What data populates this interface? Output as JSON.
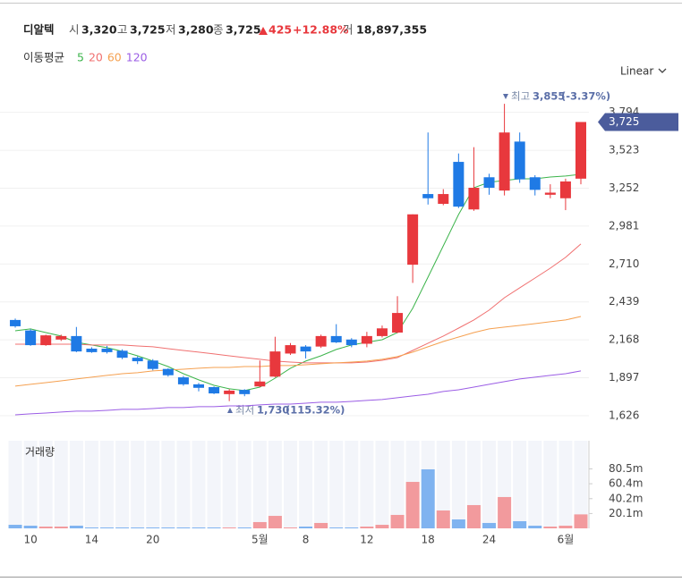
{
  "header": {
    "name": "디알텍",
    "open_label": "시",
    "open": "3,320",
    "high_label": "고",
    "high": "3,725",
    "low_label": "저",
    "low": "3,280",
    "close_label": "종",
    "close": "3,725",
    "change": "425",
    "change_pct": "+12.88%",
    "volume_label": "거",
    "volume": "18,897,355"
  },
  "chart_data": {
    "type": "candlestick",
    "categories": [
      null,
      "10",
      null,
      null,
      null,
      "14",
      null,
      null,
      null,
      "20",
      null,
      null,
      null,
      null,
      null,
      null,
      "5월",
      null,
      null,
      "8",
      null,
      null,
      null,
      "12",
      null,
      null,
      null,
      "18",
      null,
      null,
      null,
      "24",
      null,
      null,
      null,
      null,
      "6월",
      null
    ],
    "open": [
      2310,
      2235,
      2130,
      2170,
      2195,
      2105,
      2105,
      2090,
      2040,
      2020,
      1960,
      1900,
      1850,
      1830,
      1780,
      1810,
      1835,
      1905,
      2070,
      2120,
      2120,
      2195,
      2170,
      2140,
      2195,
      2220,
      2705,
      3210,
      3140,
      3440,
      3100,
      3330,
      3235,
      3585,
      3330,
      3205,
      3180,
      3320
    ],
    "high": [
      2320,
      2245,
      2205,
      2205,
      2260,
      2115,
      2125,
      2100,
      2050,
      2030,
      1965,
      1910,
      1860,
      1835,
      1815,
      1815,
      2020,
      2190,
      2145,
      2130,
      2205,
      2280,
      2180,
      2225,
      2270,
      2480,
      3065,
      3650,
      3245,
      3500,
      3545,
      3355,
      3855,
      3650,
      3345,
      3280,
      3320,
      3725
    ],
    "low": [
      2255,
      2125,
      2125,
      2160,
      2080,
      2075,
      2070,
      2030,
      1995,
      1950,
      1905,
      1840,
      1800,
      1780,
      1730,
      1765,
      1830,
      1900,
      2060,
      2035,
      2110,
      2145,
      2115,
      2115,
      2185,
      2215,
      2575,
      3135,
      3130,
      3110,
      3090,
      3205,
      3200,
      3290,
      3200,
      3180,
      3095,
      3280
    ],
    "close": [
      2265,
      2130,
      2200,
      2195,
      2085,
      2080,
      2080,
      2040,
      2015,
      1960,
      1915,
      1850,
      1825,
      1785,
      1805,
      1780,
      1870,
      2085,
      2130,
      2085,
      2195,
      2150,
      2130,
      2195,
      2250,
      2360,
      3065,
      3180,
      3210,
      3120,
      3255,
      3255,
      3650,
      3315,
      3240,
      3220,
      3300,
      3725
    ],
    "volume": [
      4.8,
      3.6,
      2.4,
      2.4,
      3.6,
      1.2,
      1.2,
      1.2,
      1.2,
      1.2,
      1.2,
      1.2,
      1.2,
      1.2,
      1.2,
      1.2,
      8.5,
      16.9,
      1.2,
      2.4,
      7.3,
      1.2,
      1.2,
      2.4,
      4.8,
      18.2,
      62.9,
      79.9,
      24.2,
      12.1,
      31.5,
      7.3,
      42.4,
      9.7,
      3.6,
      2.4,
      3.6,
      18.9
    ],
    "ma_label": "이동평균",
    "series": [
      {
        "name": "5",
        "color": "#3cb44b",
        "values": [
          2233,
          2246,
          2220,
          2195,
          2150,
          2131,
          2112,
          2086,
          2054,
          2016,
          1977,
          1926,
          1882,
          1843,
          1818,
          1805,
          1830,
          1894,
          1965,
          2016,
          2054,
          2099,
          2131,
          2150,
          2169,
          2220,
          2393,
          2616,
          2840,
          3064,
          3255,
          3294,
          3307,
          3319,
          3319,
          3332,
          3339,
          3351
        ]
      },
      {
        "name": "20",
        "color": "#f07070",
        "values": [
          2137,
          2137,
          2137,
          2137,
          2137,
          2131,
          2131,
          2131,
          2124,
          2118,
          2105,
          2092,
          2080,
          2067,
          2054,
          2041,
          2029,
          2016,
          2009,
          2003,
          2003,
          2003,
          2003,
          2009,
          2022,
          2041,
          2092,
          2144,
          2195,
          2252,
          2310,
          2380,
          2469,
          2540,
          2610,
          2680,
          2757,
          2853
        ]
      },
      {
        "name": "60",
        "color": "#f5a050",
        "values": [
          1837,
          1850,
          1862,
          1875,
          1888,
          1901,
          1914,
          1926,
          1933,
          1946,
          1952,
          1958,
          1965,
          1971,
          1971,
          1977,
          1977,
          1984,
          1984,
          1990,
          1997,
          2003,
          2009,
          2016,
          2029,
          2048,
          2080,
          2118,
          2156,
          2188,
          2220,
          2246,
          2259,
          2271,
          2284,
          2297,
          2310,
          2335
        ]
      },
      {
        "name": "120",
        "color": "#9b5de5",
        "values": [
          1632,
          1639,
          1645,
          1652,
          1658,
          1658,
          1664,
          1671,
          1671,
          1677,
          1684,
          1684,
          1690,
          1690,
          1696,
          1696,
          1703,
          1709,
          1709,
          1715,
          1722,
          1722,
          1728,
          1735,
          1741,
          1754,
          1767,
          1779,
          1799,
          1811,
          1830,
          1850,
          1869,
          1888,
          1901,
          1914,
          1926,
          1946
        ]
      }
    ],
    "up_color": "#e8383d",
    "down_color": "#1f7ae5",
    "up_volume_color": "#f29a9d",
    "down_volume_color": "#7fb3f0",
    "ylim": [
      1517,
      3958
    ],
    "yticks": [
      {
        "value": 1626,
        "label": "1,626"
      },
      {
        "value": 1897,
        "label": "1,897"
      },
      {
        "value": 2168,
        "label": "2,168"
      },
      {
        "value": 2439,
        "label": "2,439"
      },
      {
        "value": 2710,
        "label": "2,710"
      },
      {
        "value": 2981,
        "label": "2,981"
      },
      {
        "value": 3252,
        "label": "3,252"
      },
      {
        "value": 3523,
        "label": "3,523"
      },
      {
        "value": 3794,
        "label": "3,794"
      }
    ],
    "grid": true,
    "scale": "Linear",
    "last_price": {
      "value": 3725,
      "label": "3,725"
    },
    "high_note": {
      "label": "최고",
      "price": "3,855",
      "change": "(-3.37%)"
    },
    "low_note": {
      "label": "최저",
      "price": "1,730",
      "change": "(115.32%)"
    },
    "volume_label": "거래량",
    "vlim": [
      0,
      118.6
    ],
    "vticks": [
      {
        "value": 20.1,
        "label": "20.1m"
      },
      {
        "value": 40.2,
        "label": "40.2m"
      },
      {
        "value": 60.4,
        "label": "60.4m"
      },
      {
        "value": 80.5,
        "label": "80.5m"
      }
    ]
  }
}
